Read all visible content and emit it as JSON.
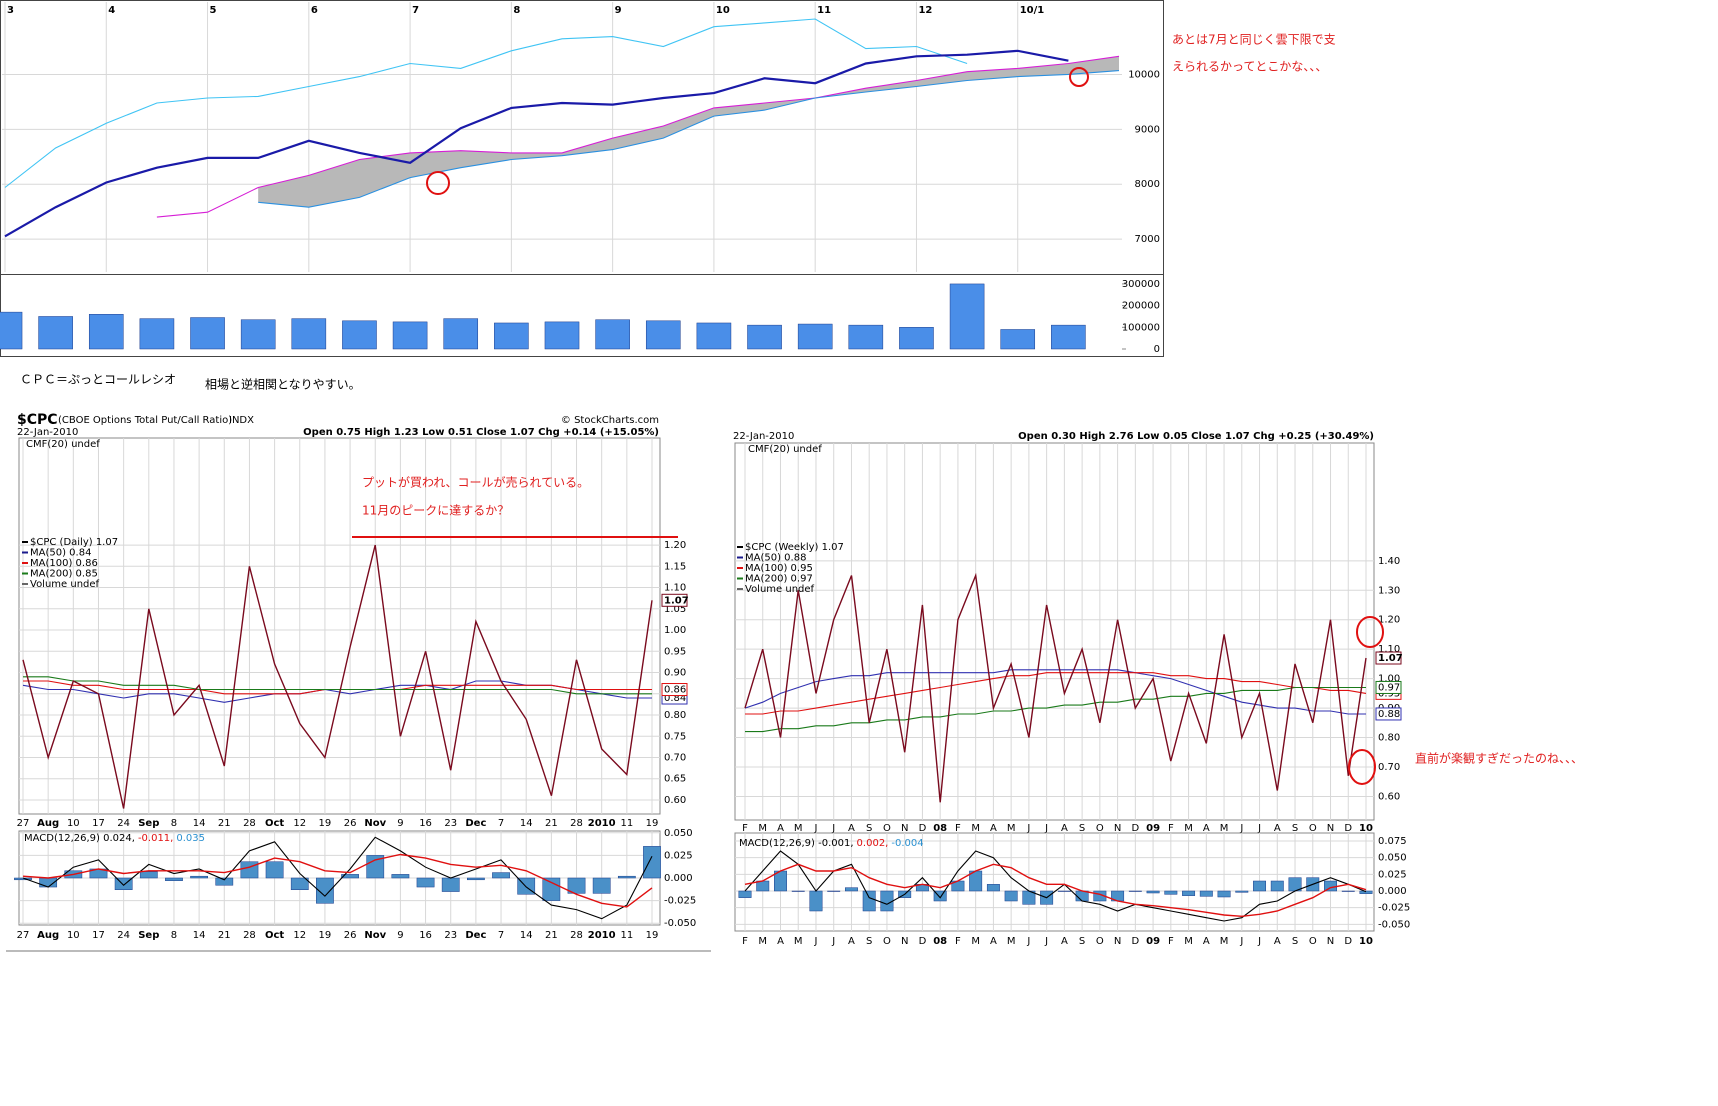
{
  "notes": {
    "nikkei_comment": [
      "あとは7月と同じく雲下限で支",
      "えられるかってとこかな、、、"
    ],
    "cpc_definition": "ＣＰＣ＝ぷっとコールレシオ",
    "cpc_comment": "相場と逆相関となりやすい。",
    "weekly_comment": "直前が楽観すぎだったのね、、、"
  },
  "chart_data": [
    {
      "type": "line",
      "categories": [
        "3",
        null,
        "4",
        null,
        "5",
        null,
        "6",
        null,
        "7",
        null,
        "8",
        null,
        "9",
        null,
        "10",
        null,
        "11",
        null,
        "12",
        null,
        "10/1",
        null,
        null
      ],
      "series": [
        {
          "color": "#40c4f4",
          "values": [
            7940,
            8660,
            9110,
            9480,
            9570,
            9600,
            9780,
            9960,
            10200,
            10110,
            10430,
            10650,
            10690,
            10510,
            10870,
            10940,
            11010,
            10470,
            10510,
            10200,
            null,
            null,
            null
          ]
        },
        {
          "color": "#d61ed6",
          "values": [
            null,
            null,
            null,
            7400,
            7490,
            7940,
            8160,
            8450,
            8570,
            8610,
            8570,
            8570,
            8840,
            9060,
            9390,
            9480,
            9570,
            9750,
            9890,
            10050,
            10110,
            10200,
            10330
          ]
        },
        {
          "color": "#2a90e0",
          "values": [
            null,
            null,
            null,
            null,
            null,
            7670,
            7580,
            7760,
            8120,
            8300,
            8450,
            8520,
            8630,
            8840,
            9240,
            9350,
            9570,
            9680,
            9780,
            9890,
            9960,
            10000,
            10070
          ]
        },
        {
          "color": "#1a1aa8",
          "values": [
            7050,
            7580,
            8030,
            8300,
            8480,
            8480,
            8790,
            8570,
            8390,
            9020,
            9390,
            9480,
            9450,
            9570,
            9660,
            9930,
            9840,
            10200,
            10330,
            10360,
            10430,
            10250,
            null
          ]
        }
      ],
      "cloud_color": "#b8b8b8",
      "ylim": [
        6400,
        11320
      ],
      "yticks": [
        7000,
        8000,
        9000,
        10000
      ],
      "grid": true
    },
    {
      "type": "bar",
      "color": "#4a8ee8",
      "values": [
        170000,
        150000,
        160000,
        140000,
        145000,
        135000,
        140000,
        130000,
        125000,
        140000,
        120000,
        125000,
        135000,
        130000,
        120000,
        110000,
        115000,
        110000,
        100000,
        300000,
        90000,
        110000,
        null
      ],
      "ylim": [
        -27700,
        332000
      ],
      "yticks": [
        0,
        100000,
        200000,
        300000
      ],
      "grid": false
    },
    {
      "type": "line",
      "symbol": "$CPC",
      "description": "(CBOE Options Total Put/Call Ratio)",
      "exchange": "INDX",
      "date": "22-Jan-2010",
      "source": "© StockCharts.com",
      "quote": "Open 0.75 High 1.23 Low 0.51 Close 1.07 Chg +0.14 (+15.05%)",
      "indicator": "CMF(20) undef",
      "annotations": [
        "プットが買われ、コールが売られている。",
        "11月のピークに達するか？"
      ],
      "legend": [
        {
          "text": "$CPC (Daily) 1.07",
          "color": "#000000"
        },
        {
          "text": "MA(50) 0.84",
          "color": "#1a1a8c"
        },
        {
          "text": "MA(100) 0.86",
          "color": "#e01010"
        },
        {
          "text": "MA(200) 0.85",
          "color": "#1a7a1a"
        },
        {
          "text": "Volume undef",
          "color": "#666666"
        }
      ],
      "categories": [
        "27",
        "Aug",
        "10",
        "17",
        "24",
        "Sep",
        "8",
        "14",
        "21",
        "28",
        "Oct",
        "12",
        "19",
        "26",
        "Nov",
        "9",
        "16",
        "23",
        "Dec",
        "7",
        "14",
        "21",
        "28",
        "2010",
        "11",
        "19"
      ],
      "bold_ticks": "month",
      "series": [
        {
          "color": "#3030b0",
          "end_label": true,
          "values": [
            0.87,
            0.86,
            0.86,
            0.85,
            0.84,
            0.85,
            0.85,
            0.84,
            0.83,
            0.84,
            0.85,
            0.85,
            0.86,
            0.85,
            0.86,
            0.87,
            0.87,
            0.86,
            0.88,
            0.88,
            0.87,
            0.87,
            0.86,
            0.85,
            0.84,
            0.84
          ]
        },
        {
          "color": "#e01010",
          "end_label": true,
          "values": [
            0.88,
            0.88,
            0.87,
            0.87,
            0.86,
            0.86,
            0.86,
            0.86,
            0.85,
            0.85,
            0.85,
            0.85,
            0.86,
            0.86,
            0.86,
            0.86,
            0.87,
            0.87,
            0.87,
            0.87,
            0.87,
            0.87,
            0.86,
            0.86,
            0.86,
            0.86
          ]
        },
        {
          "color": "#1a7a1a",
          "end_label": false,
          "values": [
            0.89,
            0.89,
            0.88,
            0.88,
            0.87,
            0.87,
            0.87,
            0.86,
            0.86,
            0.86,
            0.86,
            0.86,
            0.86,
            0.86,
            0.86,
            0.86,
            0.86,
            0.86,
            0.86,
            0.86,
            0.86,
            0.86,
            0.85,
            0.85,
            0.85,
            0.85
          ]
        },
        {
          "color": "#7a0a1e",
          "end_label": true,
          "values": [
            0.93,
            0.7,
            0.88,
            0.85,
            0.58,
            1.05,
            0.8,
            0.87,
            0.68,
            1.15,
            0.92,
            0.78,
            0.7,
            0.96,
            1.2,
            0.75,
            0.95,
            0.67,
            1.02,
            0.88,
            0.79,
            0.61,
            0.93,
            0.72,
            0.66,
            1.07
          ]
        }
      ],
      "ylim": [
        0.567,
        1.452
      ],
      "yticks": [
        {
          "value": 0.6,
          "label": "0.60"
        },
        {
          "value": 0.65,
          "label": "0.65"
        },
        {
          "value": 0.7,
          "label": "0.70"
        },
        {
          "value": 0.75,
          "label": "0.75"
        },
        {
          "value": 0.8,
          "label": "0.80"
        },
        {
          "value": 0.85,
          "label": "0.85"
        },
        {
          "value": 0.9,
          "label": "0.90"
        },
        {
          "value": 0.95,
          "label": "0.95"
        },
        {
          "value": 1,
          "label": "1.00"
        },
        {
          "value": 1.05,
          "label": "1.05"
        },
        {
          "value": 1.1,
          "label": "1.10"
        },
        {
          "value": 1.15,
          "label": "1.15"
        },
        {
          "value": 1.2,
          "label": "1.20"
        }
      ],
      "grid": true
    },
    {
      "type": "line",
      "label_parts": [
        {
          "text": "MACD(12,26,9) 0.024,",
          "color": "#000000"
        },
        {
          "text": "-0.011,",
          "color": "#e01010"
        },
        {
          "text": "0.035",
          "color": "#2a90d0"
        }
      ],
      "categories": [
        "27",
        "Aug",
        "10",
        "17",
        "24",
        "Sep",
        "8",
        "14",
        "21",
        "28",
        "Oct",
        "12",
        "19",
        "26",
        "Nov",
        "9",
        "16",
        "23",
        "Dec",
        "7",
        "14",
        "21",
        "28",
        "2010",
        "11",
        "19"
      ],
      "bold_ticks": "month",
      "series": [
        {
          "type": "bar",
          "color": "#4a90c8",
          "values": [
            -0.002,
            -0.01,
            0.008,
            0.01,
            -0.013,
            0.007,
            -0.003,
            0.002,
            -0.008,
            0.018,
            0.018,
            -0.013,
            -0.028,
            0.004,
            0.025,
            0.004,
            -0.01,
            -0.015,
            -0.002,
            0.006,
            -0.018,
            -0.025,
            -0.017,
            -0.017,
            0.002,
            0.035
          ]
        },
        {
          "color": "#000000",
          "values": [
            0,
            -0.01,
            0.012,
            0.02,
            -0.008,
            0.015,
            0.005,
            0.01,
            -0.002,
            0.03,
            0.04,
            0.005,
            -0.02,
            0.01,
            0.045,
            0.03,
            0.012,
            0,
            0.01,
            0.02,
            -0.01,
            -0.03,
            -0.035,
            -0.045,
            -0.03,
            0.024
          ]
        },
        {
          "color": "#e01010",
          "values": [
            0.002,
            0,
            0.004,
            0.01,
            0.005,
            0.008,
            0.008,
            0.008,
            0.006,
            0.012,
            0.022,
            0.018,
            0.008,
            0.006,
            0.02,
            0.026,
            0.022,
            0.015,
            0.012,
            0.014,
            0.008,
            -0.005,
            -0.018,
            -0.028,
            -0.032,
            -0.011
          ]
        }
      ],
      "ylim": [
        -0.052,
        0.052
      ],
      "yticks": [
        {
          "value": -0.05,
          "label": "-0.050"
        },
        {
          "value": -0.025,
          "label": "-0.025"
        },
        {
          "value": 0,
          "label": "0.000"
        },
        {
          "value": 0.025,
          "label": "0.025"
        },
        {
          "value": 0.05,
          "label": "0.050"
        }
      ],
      "grid": true
    },
    {
      "type": "line",
      "date": "22-Jan-2010",
      "quote": "Open 0.30 High 2.76 Low 0.05 Close 1.07 Chg +0.25 (+30.49%)",
      "indicator": "CMF(20) undef",
      "legend": [
        {
          "text": "$CPC (Weekly) 1.07",
          "color": "#000000"
        },
        {
          "text": "MA(50) 0.88",
          "color": "#1a1a8c"
        },
        {
          "text": "MA(100) 0.95",
          "color": "#e01010"
        },
        {
          "text": "MA(200) 0.97",
          "color": "#1a7a1a"
        },
        {
          "text": "Volume undef",
          "color": "#666666"
        }
      ],
      "categories": [
        "F",
        "M",
        "A",
        "M",
        "J",
        "J",
        "A",
        "S",
        "O",
        "N",
        "D",
        "08",
        "F",
        "M",
        "A",
        "M",
        "J",
        "J",
        "A",
        "S",
        "O",
        "N",
        "D",
        "09",
        "F",
        "M",
        "A",
        "M",
        "J",
        "J",
        "A",
        "S",
        "O",
        "N",
        "D",
        "10"
      ],
      "bold_ticks": "year",
      "series": [
        {
          "color": "#3030b0",
          "end_label": true,
          "values": [
            0.9,
            0.92,
            0.95,
            0.97,
            0.99,
            1,
            1.01,
            1.01,
            1.02,
            1.02,
            1.02,
            1.02,
            1.02,
            1.02,
            1.02,
            1.03,
            1.03,
            1.03,
            1.03,
            1.03,
            1.03,
            1.03,
            1.02,
            1.01,
            1,
            0.98,
            0.96,
            0.94,
            0.92,
            0.91,
            0.9,
            0.9,
            0.89,
            0.89,
            0.88,
            0.88
          ]
        },
        {
          "color": "#e01010",
          "end_label": true,
          "values": [
            0.88,
            0.88,
            0.89,
            0.89,
            0.9,
            0.91,
            0.92,
            0.93,
            0.94,
            0.95,
            0.96,
            0.97,
            0.98,
            0.99,
            1,
            1.01,
            1.01,
            1.02,
            1.02,
            1.02,
            1.02,
            1.02,
            1.02,
            1.02,
            1.01,
            1.01,
            1,
            1,
            0.99,
            0.99,
            0.98,
            0.97,
            0.97,
            0.96,
            0.96,
            0.95
          ]
        },
        {
          "color": "#1a7a1a",
          "end_label": true,
          "values": [
            0.82,
            0.82,
            0.83,
            0.83,
            0.84,
            0.84,
            0.85,
            0.85,
            0.86,
            0.86,
            0.87,
            0.87,
            0.88,
            0.88,
            0.89,
            0.89,
            0.9,
            0.9,
            0.91,
            0.91,
            0.92,
            0.92,
            0.93,
            0.93,
            0.94,
            0.94,
            0.95,
            0.95,
            0.96,
            0.96,
            0.96,
            0.97,
            0.97,
            0.97,
            0.97,
            0.97
          ]
        },
        {
          "color": "#7a0a1e",
          "end_label": true,
          "values": [
            0.9,
            1.1,
            0.8,
            1.3,
            0.95,
            1.2,
            1.35,
            0.85,
            1.1,
            0.75,
            1.25,
            0.58,
            1.2,
            1.35,
            0.9,
            1.05,
            0.8,
            1.25,
            0.95,
            1.1,
            0.85,
            1.2,
            0.9,
            1,
            0.72,
            0.95,
            0.78,
            1.15,
            0.8,
            0.95,
            0.62,
            1.05,
            0.85,
            1.2,
            0.67,
            1.07
          ]
        }
      ],
      "ylim": [
        0.52,
        1.8
      ],
      "yticks": [
        {
          "value": 0.6,
          "label": "0.60"
        },
        {
          "value": 0.7,
          "label": "0.70"
        },
        {
          "value": 0.8,
          "label": "0.80"
        },
        {
          "value": 0.9,
          "label": "0.90"
        },
        {
          "value": 1,
          "label": "1.00"
        },
        {
          "value": 1.1,
          "label": "1.10"
        },
        {
          "value": 1.2,
          "label": "1.20"
        },
        {
          "value": 1.3,
          "label": "1.30"
        },
        {
          "value": 1.4,
          "label": "1.40"
        }
      ],
      "grid": true
    },
    {
      "type": "line",
      "label_parts": [
        {
          "text": "MACD(12,26,9) -0.001,",
          "color": "#000000"
        },
        {
          "text": "0.002,",
          "color": "#e01010"
        },
        {
          "text": "-0.004",
          "color": "#2a90d0"
        }
      ],
      "categories": [
        "F",
        "M",
        "A",
        "M",
        "J",
        "J",
        "A",
        "S",
        "O",
        "N",
        "D",
        "08",
        "F",
        "M",
        "A",
        "M",
        "J",
        "J",
        "A",
        "S",
        "O",
        "N",
        "D",
        "09",
        "F",
        "M",
        "A",
        "M",
        "J",
        "J",
        "A",
        "S",
        "O",
        "N",
        "D",
        "10"
      ],
      "bold_ticks": "year",
      "series": [
        {
          "type": "bar",
          "color": "#4a90c8",
          "values": [
            -0.01,
            0.015,
            0.03,
            0,
            -0.03,
            0,
            0.005,
            -0.03,
            -0.03,
            -0.01,
            0.01,
            -0.015,
            0.015,
            0.03,
            0.01,
            -0.015,
            -0.02,
            -0.02,
            0,
            -0.015,
            -0.015,
            -0.015,
            0,
            -0.003,
            -0.005,
            -0.007,
            -0.008,
            -0.009,
            -0.002,
            0.015,
            0.015,
            0.02,
            0.02,
            0.015,
            0,
            -0.004
          ]
        },
        {
          "color": "#000000",
          "values": [
            0,
            0.03,
            0.06,
            0.04,
            0,
            0.03,
            0.04,
            -0.01,
            -0.02,
            -0.005,
            0.02,
            -0.01,
            0.03,
            0.06,
            0.05,
            0.02,
            0,
            -0.01,
            0.01,
            -0.015,
            -0.02,
            -0.03,
            -0.02,
            -0.025,
            -0.03,
            -0.035,
            -0.04,
            -0.045,
            -0.04,
            -0.02,
            -0.015,
            0,
            0.01,
            0.02,
            0.01,
            -0.001
          ]
        },
        {
          "color": "#e01010",
          "values": [
            0.01,
            0.015,
            0.03,
            0.04,
            0.03,
            0.03,
            0.035,
            0.02,
            0.01,
            0.005,
            0.01,
            0.005,
            0.015,
            0.03,
            0.04,
            0.035,
            0.02,
            0.01,
            0.01,
            0,
            -0.005,
            -0.015,
            -0.02,
            -0.022,
            -0.025,
            -0.028,
            -0.032,
            -0.036,
            -0.038,
            -0.035,
            -0.03,
            -0.02,
            -0.01,
            0.005,
            0.01,
            0.002
          ]
        }
      ],
      "ylim": [
        -0.06,
        0.087
      ],
      "yticks": [
        {
          "value": -0.05,
          "label": "-0.050"
        },
        {
          "value": -0.025,
          "label": "-0.025"
        },
        {
          "value": 0,
          "label": "0.000"
        },
        {
          "value": 0.025,
          "label": "0.025"
        },
        {
          "value": 0.05,
          "label": "0.050"
        },
        {
          "value": 0.075,
          "label": "0.075"
        }
      ],
      "grid": true
    }
  ]
}
